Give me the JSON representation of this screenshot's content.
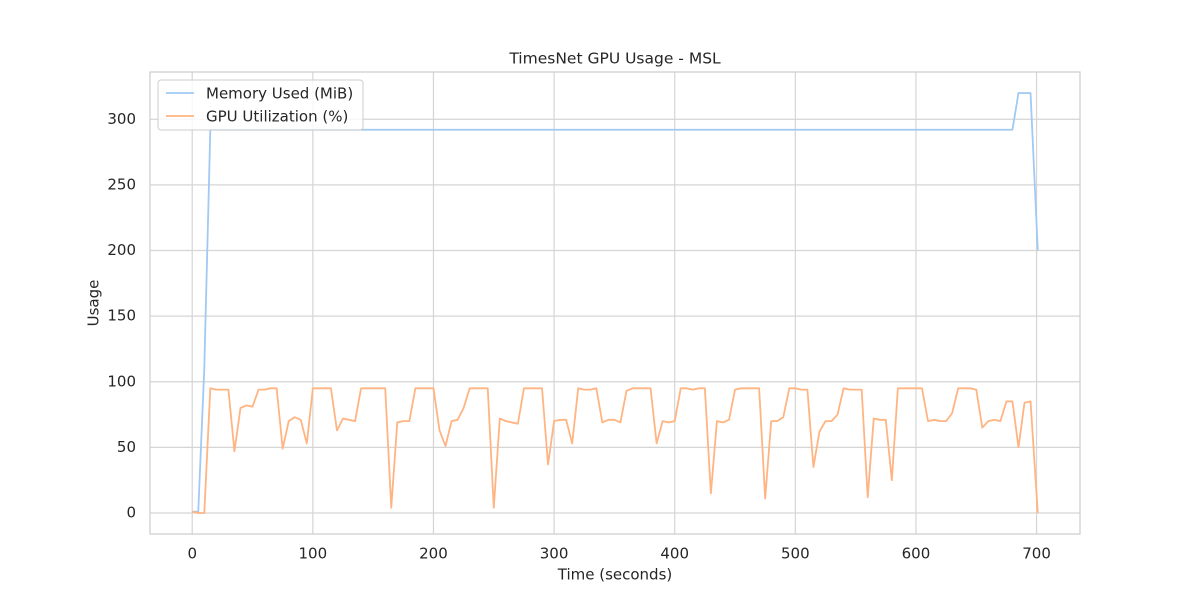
{
  "chart_data": {
    "type": "line",
    "title": "TimesNet GPU Usage - MSL",
    "xlabel": "Time (seconds)",
    "ylabel": "Usage",
    "x": [
      0,
      5,
      10,
      15,
      20,
      25,
      30,
      35,
      40,
      45,
      50,
      55,
      60,
      65,
      70,
      75,
      80,
      85,
      90,
      95,
      100,
      105,
      110,
      115,
      120,
      125,
      130,
      135,
      140,
      145,
      150,
      155,
      160,
      165,
      170,
      175,
      180,
      185,
      190,
      195,
      200,
      205,
      210,
      215,
      220,
      225,
      230,
      235,
      240,
      245,
      250,
      255,
      260,
      265,
      270,
      275,
      280,
      285,
      290,
      295,
      300,
      305,
      310,
      315,
      320,
      325,
      330,
      335,
      340,
      345,
      350,
      355,
      360,
      365,
      370,
      375,
      380,
      385,
      390,
      395,
      400,
      405,
      410,
      415,
      420,
      425,
      430,
      435,
      440,
      445,
      450,
      455,
      460,
      465,
      470,
      475,
      480,
      485,
      490,
      495,
      500,
      505,
      510,
      515,
      520,
      525,
      530,
      535,
      540,
      545,
      550,
      555,
      560,
      565,
      570,
      575,
      580,
      585,
      590,
      595,
      600,
      605,
      610,
      615,
      620,
      625,
      630,
      635,
      640,
      645,
      650,
      655,
      660,
      665,
      670,
      675,
      680,
      685,
      690,
      695,
      701
    ],
    "series": [
      {
        "name": "Memory Used (MiB)",
        "color": "#a1c9f4",
        "values": [
          1,
          1,
          110,
          292,
          292,
          292,
          292,
          292,
          292,
          292,
          292,
          292,
          292,
          292,
          292,
          292,
          292,
          292,
          292,
          292,
          292,
          292,
          292,
          292,
          292,
          292,
          292,
          292,
          292,
          292,
          292,
          292,
          292,
          292,
          292,
          292,
          292,
          292,
          292,
          292,
          292,
          292,
          292,
          292,
          292,
          292,
          292,
          292,
          292,
          292,
          292,
          292,
          292,
          292,
          292,
          292,
          292,
          292,
          292,
          292,
          292,
          292,
          292,
          292,
          292,
          292,
          292,
          292,
          292,
          292,
          292,
          292,
          292,
          292,
          292,
          292,
          292,
          292,
          292,
          292,
          292,
          292,
          292,
          292,
          292,
          292,
          292,
          292,
          292,
          292,
          292,
          292,
          292,
          292,
          292,
          292,
          292,
          292,
          292,
          292,
          292,
          292,
          292,
          292,
          292,
          292,
          292,
          292,
          292,
          292,
          292,
          292,
          292,
          292,
          292,
          292,
          292,
          292,
          292,
          292,
          292,
          292,
          292,
          292,
          292,
          292,
          292,
          292,
          292,
          292,
          292,
          292,
          292,
          292,
          292,
          292,
          292,
          320,
          320,
          320,
          200
        ]
      },
      {
        "name": "GPU Utilization (%)",
        "color": "#ffb482",
        "values": [
          1,
          0,
          0,
          95,
          94,
          94,
          94,
          47,
          80,
          82,
          81,
          94,
          94,
          95,
          95,
          49,
          70,
          73,
          71,
          53,
          95,
          95,
          95,
          95,
          63,
          72,
          71,
          70,
          95,
          95,
          95,
          95,
          95,
          4,
          69,
          70,
          70,
          95,
          95,
          95,
          95,
          63,
          51,
          70,
          71,
          80,
          95,
          95,
          95,
          95,
          4,
          72,
          70,
          69,
          68,
          95,
          95,
          95,
          95,
          37,
          70,
          71,
          71,
          53,
          95,
          94,
          94,
          95,
          69,
          71,
          71,
          69,
          93,
          95,
          95,
          95,
          95,
          53,
          70,
          69,
          70,
          95,
          95,
          94,
          95,
          95,
          15,
          70,
          69,
          71,
          94,
          95,
          95,
          95,
          95,
          11,
          70,
          70,
          73,
          95,
          95,
          94,
          94,
          35,
          62,
          70,
          70,
          75,
          95,
          94,
          94,
          94,
          12,
          72,
          71,
          71,
          25,
          95,
          95,
          95,
          95,
          95,
          70,
          71,
          70,
          70,
          76,
          95,
          95,
          95,
          94,
          65,
          70,
          71,
          70,
          85,
          85,
          50,
          84,
          85,
          0
        ]
      }
    ],
    "xlim": [
      -35,
      736
    ],
    "xticks": [
      0,
      100,
      200,
      300,
      400,
      500,
      600,
      700
    ],
    "ylim": [
      -16,
      336
    ],
    "yticks": [
      0,
      50,
      100,
      150,
      200,
      250,
      300
    ],
    "grid": true,
    "legend": "upper left"
  }
}
